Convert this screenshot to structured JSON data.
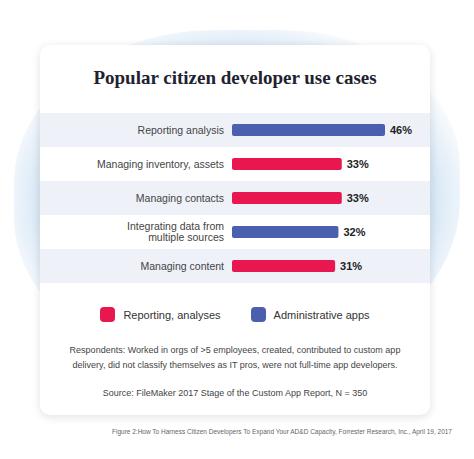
{
  "chart_data": {
    "type": "bar",
    "orientation": "horizontal",
    "title": "Popular citizen developer use cases",
    "categories": [
      "Reporting analysis",
      "Managing inventory, assets",
      "Managing contacts",
      "Integrating data from multiple sources",
      "Managing content"
    ],
    "values": [
      46,
      33,
      33,
      32,
      31
    ],
    "value_labels": [
      "46%",
      "33%",
      "33%",
      "32%",
      "31%"
    ],
    "colors": [
      "#4a5fad",
      "#e8174f",
      "#e8174f",
      "#4a5fad",
      "#e8174f"
    ],
    "data_labels": true,
    "tick_labels": "y",
    "legend": "bottom",
    "legend_entries": [
      {
        "name": "Reporting, analyses",
        "color": "#e8174f"
      },
      {
        "name": "Administrative apps",
        "color": "#4a5fad"
      }
    ]
  },
  "note": "Respondents: Worked in orgs of >5 employees, created, contributed to custom app delivery, did not classify themselves as IT pros, were not full-time app developers.",
  "source": "Source: FileMaker 2017 Stage of the Custom App Report, N = 350",
  "footnote": "Figure 2:How To Harness Citizen Developers To Expand Your AD&D Capacity, Forrester Research, Inc., April 19, 2017"
}
